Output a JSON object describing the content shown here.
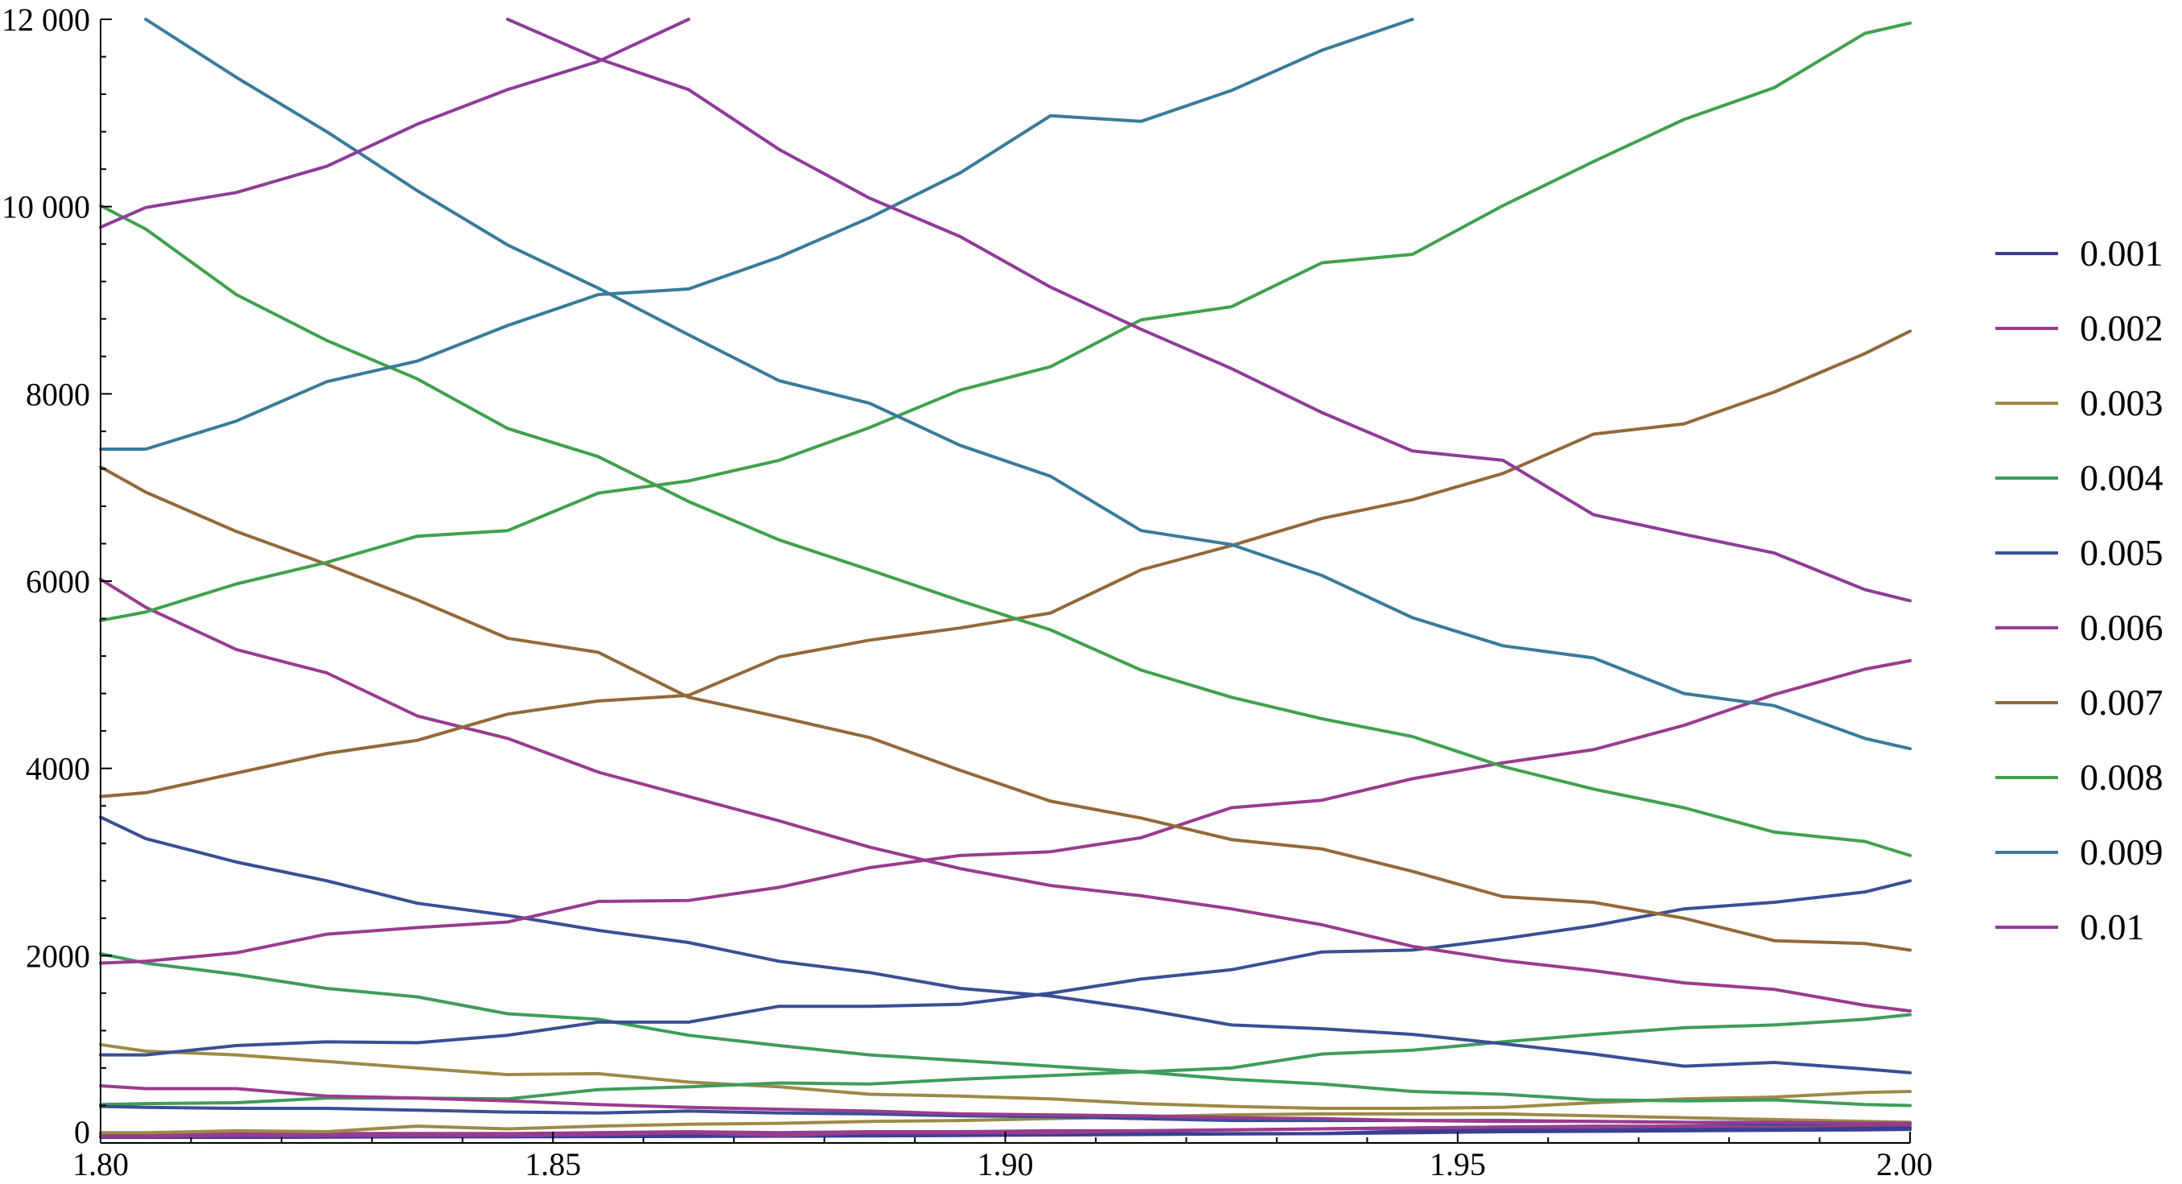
{
  "chart_data": {
    "type": "line",
    "xlim": [
      1.8,
      2.0
    ],
    "ylim": [
      0,
      12000
    ],
    "x_ticks": [
      {
        "value": 1.8,
        "label": "1.80"
      },
      {
        "value": 1.85,
        "label": "1.85"
      },
      {
        "value": 1.9,
        "label": "1.90"
      },
      {
        "value": 1.95,
        "label": "1.95"
      },
      {
        "value": 2.0,
        "label": "2.00"
      }
    ],
    "y_ticks": [
      {
        "value": 0,
        "label": "0"
      },
      {
        "value": 2000,
        "label": "2000"
      },
      {
        "value": 4000,
        "label": "4000"
      },
      {
        "value": 6000,
        "label": "6000"
      },
      {
        "value": 8000,
        "label": "8000"
      },
      {
        "value": 10000,
        "label": "10 000"
      },
      {
        "value": 12000,
        "label": "12 000"
      }
    ],
    "grid": false,
    "legend_position": "right",
    "legend": [
      {
        "label": "0.001",
        "color": "#3a3f93"
      },
      {
        "label": "0.002",
        "color": "#993c8e"
      },
      {
        "label": "0.003",
        "color": "#9d8a48"
      },
      {
        "label": "0.004",
        "color": "#3f9c5a"
      },
      {
        "label": "0.005",
        "color": "#3a4f93"
      },
      {
        "label": "0.006",
        "color": "#993c8e"
      },
      {
        "label": "0.007",
        "color": "#93693a"
      },
      {
        "label": "0.008",
        "color": "#41a14e"
      },
      {
        "label": "0.009",
        "color": "#3a7b9a"
      },
      {
        "label": "0.01",
        "color": "#8e3c99"
      }
    ],
    "x": [
      1.8,
      1.805,
      1.815,
      1.825,
      1.835,
      1.845,
      1.855,
      1.865,
      1.875,
      1.885,
      1.895,
      1.905,
      1.915,
      1.925,
      1.935,
      1.945,
      1.955,
      1.965,
      1.975,
      1.985,
      1.995,
      2.0
    ],
    "series": [
      {
        "color": "#3a3f93",
        "values": [
          60,
          60,
          60,
          62,
          65,
          65,
          68,
          70,
          72,
          75,
          80,
          85,
          90,
          95,
          100,
          110,
          120,
          125,
          130,
          135,
          140,
          145
        ]
      },
      {
        "color": "#3a3f93",
        "values": [
          100,
          100,
          100,
          100,
          100,
          100,
          100,
          100,
          100,
          100,
          100,
          100,
          100,
          100,
          100,
          130,
          140,
          150,
          160,
          150,
          160,
          165
        ]
      },
      {
        "color": "#993c8e",
        "values": [
          70,
          70,
          80,
          80,
          80,
          80,
          90,
          110,
          80,
          110,
          110,
          110,
          130,
          140,
          150,
          160,
          170,
          180,
          180,
          180,
          190,
          195
        ]
      },
      {
        "color": "#993c8e",
        "values": [
          100,
          100,
          100,
          100,
          100,
          100,
          110,
          120,
          110,
          120,
          120,
          130,
          130,
          140,
          150,
          160,
          170,
          170,
          180,
          180,
          190,
          195
        ]
      },
      {
        "color": "#9d8a48",
        "values": [
          110,
          110,
          130,
          120,
          180,
          150,
          180,
          200,
          210,
          230,
          240,
          260,
          280,
          300,
          310,
          310,
          310,
          290,
          270,
          250,
          230,
          220
        ]
      },
      {
        "color": "#9d8a48",
        "values": [
          1050,
          980,
          940,
          870,
          800,
          730,
          740,
          650,
          600,
          520,
          500,
          470,
          420,
          390,
          370,
          370,
          380,
          430,
          470,
          490,
          540,
          550
        ]
      },
      {
        "color": "#3f9c5a",
        "values": [
          410,
          420,
          430,
          480,
          480,
          470,
          570,
          600,
          640,
          630,
          680,
          720,
          760,
          800,
          950,
          990,
          1080,
          1160,
          1230,
          1260,
          1320,
          1370
        ]
      },
      {
        "color": "#3f9c5a",
        "values": [
          2020,
          1920,
          1800,
          1650,
          1560,
          1380,
          1320,
          1150,
          1040,
          940,
          880,
          820,
          760,
          680,
          630,
          550,
          520,
          460,
          450,
          460,
          410,
          400
        ]
      },
      {
        "color": "#3a4f93",
        "values": [
          940,
          940,
          1040,
          1080,
          1070,
          1150,
          1290,
          1290,
          1460,
          1460,
          1480,
          1600,
          1750,
          1850,
          2040,
          2060,
          2180,
          2320,
          2500,
          2570,
          2680,
          2800
        ]
      },
      {
        "color": "#3a4f93",
        "values": [
          3480,
          3250,
          3000,
          2800,
          2560,
          2430,
          2270,
          2140,
          1940,
          1820,
          1650,
          1570,
          1430,
          1260,
          1220,
          1160,
          1060,
          950,
          820,
          860,
          790,
          750
        ]
      },
      {
        "color": "#3a4f93",
        "values": [
          390,
          380,
          370,
          370,
          350,
          330,
          320,
          340,
          320,
          310,
          290,
          280,
          260,
          240,
          240,
          240,
          240,
          230,
          220,
          200,
          210,
          210
        ]
      },
      {
        "color": "#993c8e",
        "values": [
          1920,
          1940,
          2030,
          2230,
          2300,
          2360,
          2580,
          2590,
          2730,
          2940,
          3070,
          3110,
          3260,
          3580,
          3660,
          3890,
          4060,
          4200,
          4460,
          4790,
          5060,
          5150
        ]
      },
      {
        "color": "#993c8e",
        "values": [
          6020,
          5720,
          5270,
          5020,
          4560,
          4320,
          3960,
          3700,
          3440,
          3160,
          2930,
          2750,
          2640,
          2500,
          2330,
          2100,
          1950,
          1840,
          1710,
          1640,
          1470,
          1410
        ]
      },
      {
        "color": "#993c8e",
        "values": [
          610,
          580,
          580,
          500,
          480,
          450,
          410,
          380,
          360,
          340,
          310,
          300,
          290,
          270,
          260,
          240,
          230,
          230,
          220,
          220,
          210,
          210
        ]
      },
      {
        "color": "#93693a",
        "values": [
          3700,
          3740,
          3950,
          4160,
          4300,
          4580,
          4720,
          4780,
          5190,
          5370,
          5500,
          5660,
          6120,
          6380,
          6670,
          6870,
          7150,
          7570,
          7680,
          8020,
          8430,
          8670
        ]
      },
      {
        "color": "#93693a",
        "values": [
          7220,
          6950,
          6530,
          6180,
          5800,
          5390,
          5240,
          4760,
          4550,
          4330,
          3980,
          3650,
          3470,
          3240,
          3140,
          2900,
          2630,
          2570,
          2400,
          2160,
          2130,
          2060
        ]
      },
      {
        "color": "#41a14e",
        "values": [
          5580,
          5670,
          5970,
          6200,
          6480,
          6540,
          6940,
          7070,
          7290,
          7640,
          8040,
          8290,
          8790,
          8930,
          9400,
          9490,
          10010,
          10480,
          10930,
          11270,
          11850,
          11960
        ]
      },
      {
        "color": "#41a14e",
        "values": [
          10010,
          9760,
          9060,
          8570,
          8160,
          7630,
          7330,
          6850,
          6440,
          6120,
          5790,
          5480,
          5050,
          4760,
          4530,
          4340,
          4020,
          3780,
          3580,
          3320,
          3220,
          3070
        ]
      },
      {
        "color": "#3a7b9a",
        "values": [
          7410,
          7410,
          7710,
          8130,
          8350,
          8730,
          9060,
          9120,
          9460,
          9880,
          10360,
          10970,
          10910,
          11240,
          11670,
          12000,
          null,
          null,
          null,
          null,
          null,
          null
        ]
      },
      {
        "color": "#3a7b9a",
        "values": [
          null,
          12000,
          11380,
          10800,
          10170,
          9590,
          9130,
          8630,
          8140,
          7900,
          7450,
          7120,
          6540,
          6390,
          6060,
          5610,
          5310,
          5180,
          4800,
          4670,
          4320,
          4210
        ]
      },
      {
        "color": "#8e3c99",
        "values": [
          9780,
          9990,
          10150,
          10430,
          10880,
          11250,
          11550,
          12000,
          null,
          null,
          null,
          null,
          null,
          null,
          null,
          null,
          null,
          null,
          null,
          null,
          null,
          null
        ]
      },
      {
        "color": "#8e3c99",
        "values": [
          null,
          null,
          null,
          null,
          null,
          12000,
          11580,
          11250,
          10610,
          10090,
          9680,
          9140,
          8690,
          8270,
          7800,
          7390,
          7290,
          6710,
          6500,
          6300,
          5910,
          5790
        ]
      }
    ]
  }
}
